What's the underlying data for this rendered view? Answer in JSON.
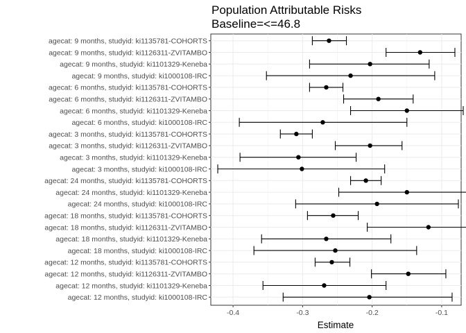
{
  "chart_data": {
    "type": "scatter",
    "title": "Population Attributable Risks",
    "subtitle": "Baseline=<=46.8",
    "xlabel": "Estimate",
    "ylabel": "",
    "xlim": [
      -0.432,
      -0.072
    ],
    "xticks": [
      -0.4,
      -0.3,
      -0.2,
      -0.1
    ],
    "grid": true,
    "legend": "none",
    "categories": [
      "agecat: 9 months, studyid: ki1135781-COHORTS",
      "agecat: 9 months, studyid: ki1126311-ZVITAMBO",
      "agecat: 9 months, studyid: ki1101329-Keneba",
      "agecat: 9 months, studyid: ki1000108-IRC",
      "agecat: 6 months, studyid: ki1135781-COHORTS",
      "agecat: 6 months, studyid: ki1126311-ZVITAMBO",
      "agecat: 6 months, studyid: ki1101329-Keneba",
      "agecat: 6 months, studyid: ki1000108-IRC",
      "agecat: 3 months, studyid: ki1135781-COHORTS",
      "agecat: 3 months, studyid: ki1126311-ZVITAMBO",
      "agecat: 3 months, studyid: ki1101329-Keneba",
      "agecat: 3 months, studyid: ki1000108-IRC",
      "agecat: 24 months, studyid: ki1135781-COHORTS",
      "agecat: 24 months, studyid: ki1101329-Keneba",
      "agecat: 24 months, studyid: ki1000108-IRC",
      "agecat: 18 months, studyid: ki1135781-COHORTS",
      "agecat: 18 months, studyid: ki1126311-ZVITAMBO",
      "agecat: 18 months, studyid: ki1101329-Keneba",
      "agecat: 18 months, studyid: ki1000108-IRC",
      "agecat: 12 months, studyid: ki1135781-COHORTS",
      "agecat: 12 months, studyid: ki1126311-ZVITAMBO",
      "agecat: 12 months, studyid: ki1101329-Keneba",
      "agecat: 12 months, studyid: ki1000108-IRC"
    ],
    "estimates": [
      -0.262,
      -0.131,
      -0.203,
      -0.231,
      -0.266,
      -0.191,
      -0.15,
      -0.271,
      -0.309,
      -0.203,
      -0.306,
      -0.301,
      -0.209,
      -0.15,
      -0.193,
      -0.256,
      -0.119,
      -0.266,
      -0.253,
      -0.258,
      -0.148,
      -0.269,
      -0.204
    ],
    "lower": [
      -0.286,
      -0.18,
      -0.29,
      -0.352,
      -0.29,
      -0.241,
      -0.231,
      -0.391,
      -0.332,
      -0.253,
      -0.39,
      -0.422,
      -0.231,
      -0.248,
      -0.31,
      -0.293,
      -0.207,
      -0.359,
      -0.37,
      -0.282,
      -0.201,
      -0.357,
      -0.328
    ],
    "upper": [
      -0.237,
      -0.081,
      -0.118,
      -0.11,
      -0.242,
      -0.141,
      -0.069,
      -0.15,
      -0.286,
      -0.157,
      -0.223,
      -0.182,
      -0.187,
      -0.053,
      -0.076,
      -0.22,
      -0.031,
      -0.173,
      -0.136,
      -0.232,
      -0.094,
      -0.18,
      -0.085
    ]
  }
}
